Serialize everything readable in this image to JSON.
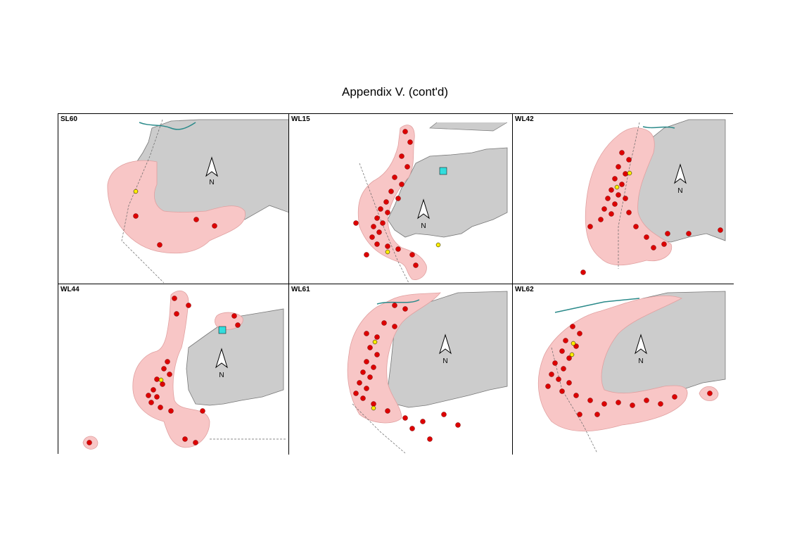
{
  "title": "Appendix V.  (cont'd)",
  "colors": {
    "land": "#cccccc",
    "range": "#f8c6c6",
    "sighting": "#dd0000",
    "highlight": "#ffee00",
    "platform": "#33dddd"
  },
  "north_arrow": {
    "label": "N"
  },
  "panels": [
    {
      "id": "SL60"
    },
    {
      "id": "WL15"
    },
    {
      "id": "WL42"
    },
    {
      "id": "WL44"
    },
    {
      "id": "WL61"
    },
    {
      "id": "WL62"
    }
  ]
}
